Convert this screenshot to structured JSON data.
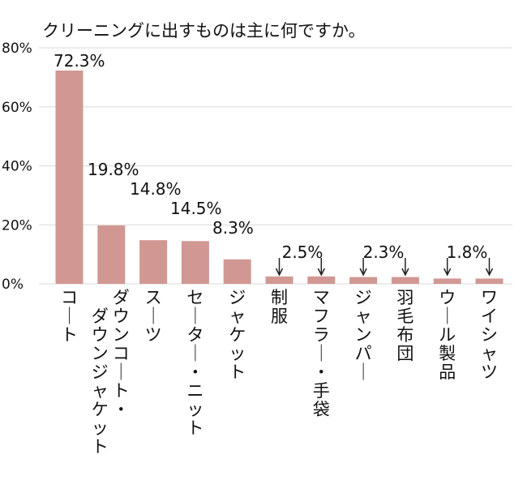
{
  "chart_data": {
    "type": "bar",
    "title": "クリーニングに出すものは主に何ですか。",
    "categories": [
      "コート",
      "ダウンコート・ダウンジャケット",
      "スーツ",
      "セーター・ニット",
      "ジャケット",
      "制服",
      "マフラー・手袋",
      "ジャンパー",
      "羽毛布団",
      "ウール製品",
      "ワイシャツ"
    ],
    "values": [
      72.3,
      19.8,
      14.8,
      14.5,
      8.3,
      2.5,
      2.5,
      2.3,
      2.3,
      1.8,
      1.8
    ],
    "bar_labels": [
      "72.3%",
      "19.8%",
      "14.8%",
      "14.5%",
      "8.3%",
      "2.5%",
      "",
      "2.3%",
      "",
      "1.8%",
      ""
    ],
    "y_ticks": [
      "0%",
      "20%",
      "40%",
      "60%",
      "80%"
    ],
    "y_tick_values": [
      0,
      20,
      40,
      60,
      80
    ],
    "ylim": [
      0,
      80
    ],
    "grid": true,
    "colors": {
      "bar": "#d19893",
      "grid": "#d9d9d9",
      "text": "#111111"
    }
  }
}
